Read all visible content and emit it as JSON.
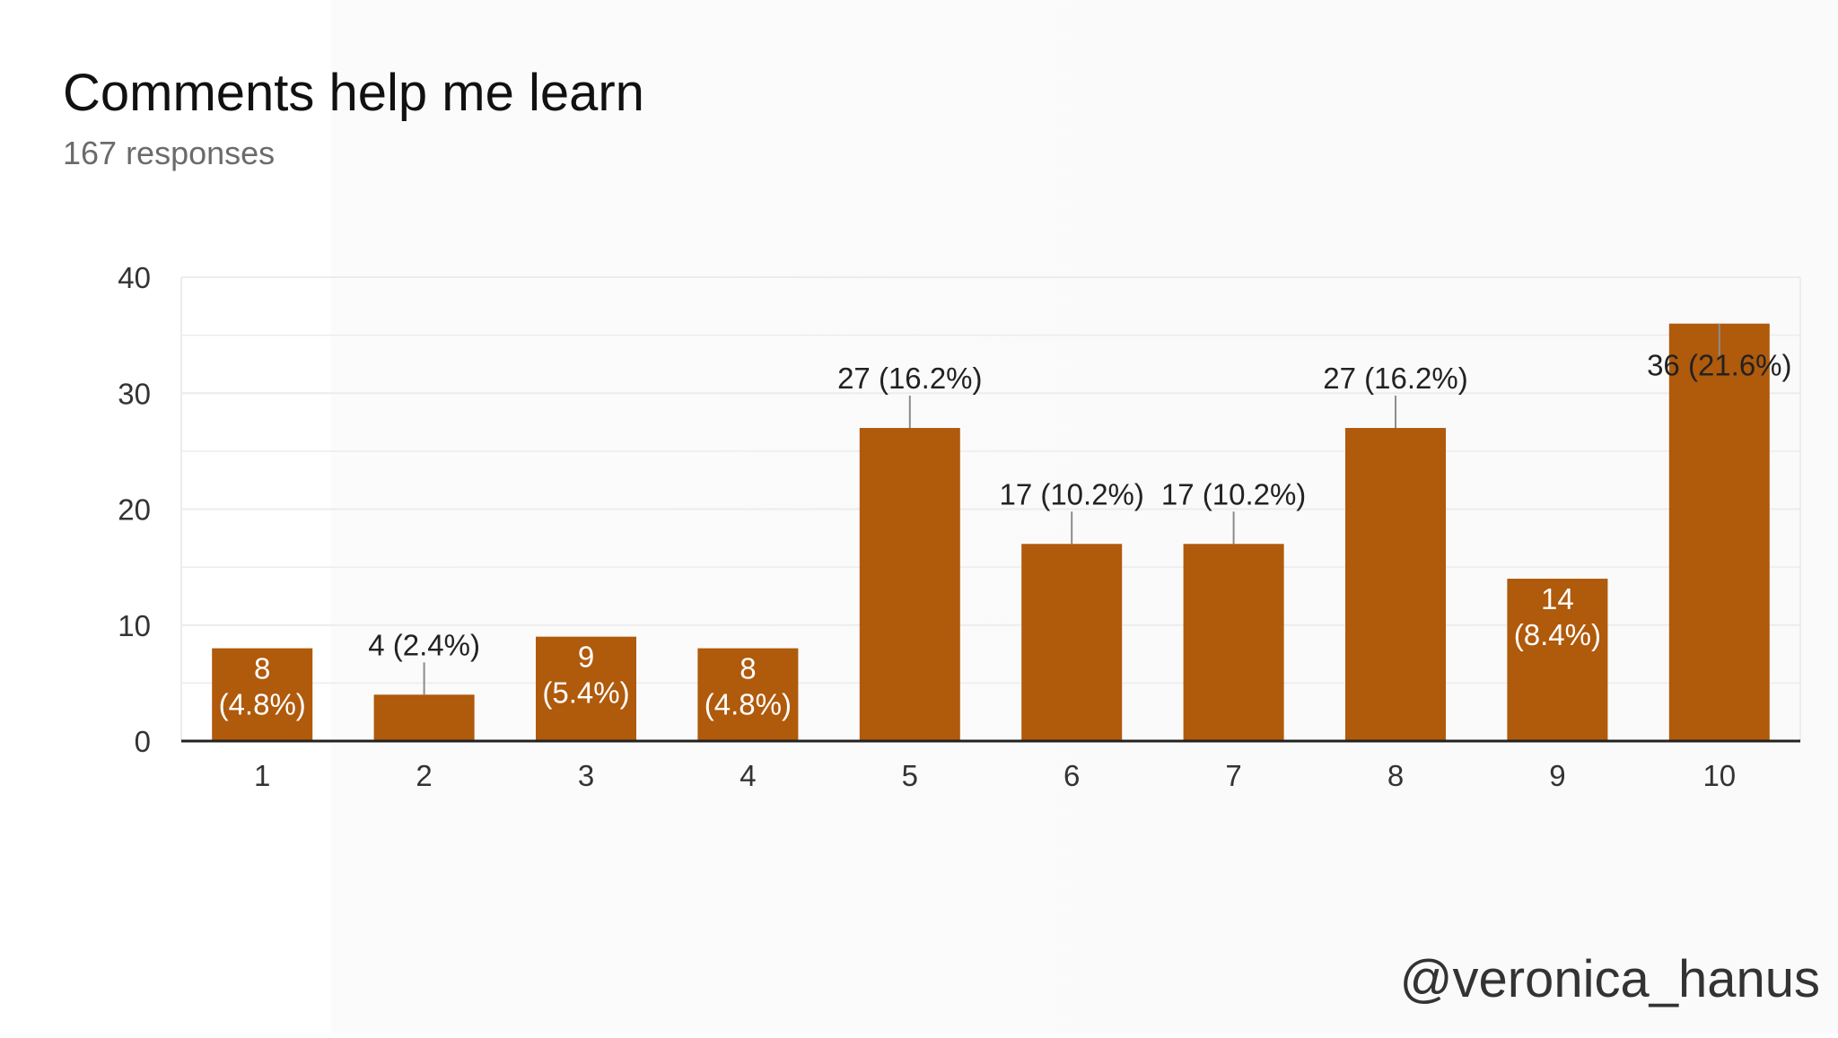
{
  "header": {
    "title": "Comments help me learn",
    "subtitle": "167 responses"
  },
  "watermark": "@veronica_hanus",
  "colors": {
    "bar": "#b05a0c",
    "grid": "#ececec",
    "axis": "#222222",
    "tick_text": "#333333",
    "label_text_dark": "#222222",
    "label_text_light": "#ffffff",
    "leader_line": "#8c8c8c"
  },
  "chart_data": {
    "type": "bar",
    "categories": [
      "1",
      "2",
      "3",
      "4",
      "5",
      "6",
      "7",
      "8",
      "9",
      "10"
    ],
    "values": [
      8,
      4,
      9,
      8,
      27,
      17,
      17,
      27,
      14,
      36
    ],
    "data_labels": [
      "8 (4.8%)",
      "4 (2.4%)",
      "9 (5.4%)",
      "8 (4.8%)",
      "27 (16.2%)",
      "17 (10.2%)",
      "17 (10.2%)",
      "27 (16.2%)",
      "14 (8.4%)",
      "36 (21.6%)"
    ],
    "title": "Comments help me learn",
    "subtitle": "167 responses",
    "xlabel": "",
    "ylabel": "",
    "ylim": [
      0,
      40
    ],
    "yticks": [
      0,
      10,
      20,
      30,
      40
    ],
    "grid": true,
    "legend": "none"
  }
}
